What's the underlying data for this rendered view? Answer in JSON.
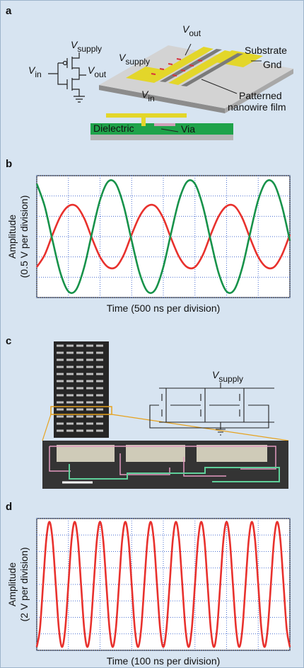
{
  "panels": {
    "a": {
      "label": "a",
      "schematic": {
        "v_supply": {
          "symbol": "V",
          "subscript": "supply"
        },
        "v_in": {
          "symbol": "V",
          "subscript": "in"
        },
        "v_out": {
          "symbol": "V",
          "subscript": "out"
        }
      },
      "device": {
        "v_out": {
          "symbol": "V",
          "subscript": "out"
        },
        "v_supply": {
          "symbol": "V",
          "subscript": "supply"
        },
        "v_in": {
          "symbol": "V",
          "subscript": "in"
        },
        "substrate": "Substrate",
        "gnd": "Gnd",
        "film": [
          "Patterned",
          "nanowire film"
        ],
        "dielectric": "Dielectric",
        "via": "Via"
      }
    },
    "c": {
      "label": "c",
      "v_supply": {
        "symbol": "V",
        "subscript": "supply"
      }
    }
  },
  "chart_data": [
    {
      "type": "line",
      "label": "b",
      "ylabel": [
        "Amplitude",
        "(0.5 V per division)"
      ],
      "xlabel": "Time (500 ns per division)",
      "x": [
        0,
        0.25,
        0.5,
        0.75,
        1,
        1.25,
        1.5,
        1.75,
        2,
        2.25,
        2.5,
        2.75,
        3,
        3.25,
        3.5,
        3.75,
        4,
        4.25,
        4.5,
        4.75,
        5,
        5.25,
        5.5,
        5.75,
        6,
        6.25,
        6.5,
        6.75,
        7,
        7.25,
        7.5,
        7.75,
        8
      ],
      "series": [
        {
          "color": "#e8312d",
          "values": [
            -1.5,
            -0.9,
            0.1,
            1.0,
            1.5,
            1.5,
            0.9,
            -0.1,
            -1.0,
            -1.5,
            -1.5,
            -0.9,
            0.1,
            1.0,
            1.5,
            1.5,
            0.9,
            -0.1,
            -1.0,
            -1.5,
            -1.5,
            -0.9,
            0.1,
            1.0,
            1.5,
            1.5,
            0.9,
            -0.1,
            -1.0,
            -1.5,
            -1.5,
            -0.9,
            0.1
          ]
        },
        {
          "color": "#17924a",
          "values": [
            2.6,
            1.5,
            -0.2,
            -1.8,
            -2.7,
            -2.6,
            -1.5,
            0.2,
            1.8,
            2.7,
            2.6,
            1.5,
            -0.2,
            -1.8,
            -2.7,
            -2.6,
            -1.5,
            0.2,
            1.8,
            2.7,
            2.6,
            1.5,
            -0.2,
            -1.8,
            -2.7,
            -2.6,
            -1.5,
            0.2,
            1.8,
            2.7,
            2.6,
            1.5,
            -0.2
          ]
        }
      ],
      "xlim": [
        0,
        8
      ],
      "ylim": [
        -3,
        3
      ],
      "xticks": [
        0,
        1,
        2,
        3,
        4,
        5,
        6,
        7,
        8
      ],
      "yticks": [
        -3,
        -2,
        -1,
        0,
        1,
        2,
        3
      ],
      "grid": true
    },
    {
      "type": "line",
      "label": "d",
      "ylabel": [
        "Amplitude",
        "(2 V per division)"
      ],
      "xlabel": "Time (100 ns per division)",
      "x": [
        0,
        0.1,
        0.2,
        0.3,
        0.4,
        0.5,
        0.6,
        0.7,
        0.8,
        0.9,
        1,
        1.1,
        1.2,
        1.3,
        1.4,
        1.5,
        1.6,
        1.7,
        1.8,
        1.9,
        2,
        2.1,
        2.2,
        2.3,
        2.4,
        2.5,
        2.6,
        2.7,
        2.8,
        2.9,
        3,
        3.1,
        3.2,
        3.3,
        3.4,
        3.5,
        3.6,
        3.7,
        3.8,
        3.9,
        4,
        4.1,
        4.2,
        4.3,
        4.4,
        4.5,
        4.6,
        4.7,
        4.8,
        4.9,
        5,
        5.1,
        5.2,
        5.3,
        5.4,
        5.5,
        5.6,
        5.7,
        5.8,
        5.9,
        6,
        6.1,
        6.2,
        6.3,
        6.4,
        6.5,
        6.6,
        6.7,
        6.8,
        6.9,
        7,
        7.1,
        7.2,
        7.3,
        7.4,
        7.5,
        7.6,
        7.7,
        7.8,
        7.9,
        8
      ],
      "series": [
        {
          "color": "#e8312d",
          "values": [
            -3.8,
            -2.7,
            0,
            2.7,
            3.8,
            2.7,
            0,
            -2.7,
            -3.8,
            -2.7,
            0,
            2.7,
            3.8,
            2.7,
            0,
            -2.7,
            -3.8,
            -2.7,
            0,
            2.7,
            3.8,
            2.7,
            0,
            -2.7,
            -3.8,
            -2.7,
            0,
            2.7,
            3.8,
            2.7,
            0,
            -2.7,
            -3.8,
            -2.7,
            0,
            2.7,
            3.8,
            2.7,
            0,
            -2.7,
            -3.8,
            -2.7,
            0,
            2.7,
            3.8,
            2.7,
            0,
            -2.7,
            -3.8,
            -2.7,
            0,
            2.7,
            3.8,
            2.7,
            0,
            -2.7,
            -3.8,
            -2.7,
            0,
            2.7,
            3.8,
            2.7,
            0,
            -2.7,
            -3.8,
            -2.7,
            0,
            2.7,
            3.8,
            2.7,
            0,
            -2.7,
            -3.8,
            -2.7,
            0,
            2.7,
            3.8,
            2.7,
            0,
            -2.7,
            -3.8
          ]
        }
      ],
      "xlim": [
        0,
        8
      ],
      "ylim": [
        -4,
        4
      ],
      "xticks": [
        0,
        1,
        2,
        3,
        4,
        5,
        6,
        7,
        8
      ],
      "yticks": [
        -4,
        -3,
        -2,
        -1,
        0,
        1,
        2,
        3,
        4
      ],
      "grid": true
    }
  ]
}
